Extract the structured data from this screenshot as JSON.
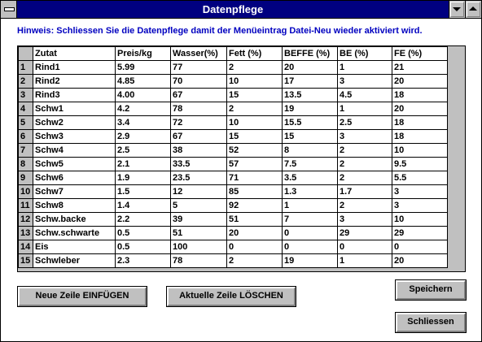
{
  "window": {
    "title": "Datenpflege"
  },
  "hint": "Hinweis: Schliessen Sie die Datenpflege damit der Menüeintrag Datei-Neu wieder aktiviert wird.",
  "grid": {
    "columns": [
      "Zutat",
      "Preis/kg",
      "Wasser(%)",
      "Fett (%)",
      "BEFFE (%)",
      "BE (%)",
      "FE (%)"
    ],
    "rows": [
      [
        "1",
        "Rind1",
        "5.99",
        "77",
        "2",
        "20",
        "1",
        "21"
      ],
      [
        "2",
        "Rind2",
        "4.85",
        "70",
        "10",
        "17",
        "3",
        "20"
      ],
      [
        "3",
        "Rind3",
        "4.00",
        "67",
        "15",
        "13.5",
        "4.5",
        "18"
      ],
      [
        "4",
        "Schw1",
        "4.2",
        "78",
        "2",
        "19",
        "1",
        "20"
      ],
      [
        "5",
        "Schw2",
        "3.4",
        "72",
        "10",
        "15.5",
        "2.5",
        "18"
      ],
      [
        "6",
        "Schw3",
        "2.9",
        "67",
        "15",
        "15",
        "3",
        "18"
      ],
      [
        "7",
        "Schw4",
        "2.5",
        "38",
        "52",
        "8",
        "2",
        "10"
      ],
      [
        "8",
        "Schw5",
        "2.1",
        "33.5",
        "57",
        "7.5",
        "2",
        "9.5"
      ],
      [
        "9",
        "Schw6",
        "1.9",
        "23.5",
        "71",
        "3.5",
        "2",
        "5.5"
      ],
      [
        "10",
        "Schw7",
        "1.5",
        "12",
        "85",
        "1.3",
        "1.7",
        "3"
      ],
      [
        "11",
        "Schw8",
        "1.4",
        "5",
        "92",
        "1",
        "2",
        "3"
      ],
      [
        "12",
        "Schw.backe",
        "2.2",
        "39",
        "51",
        "7",
        "3",
        "10"
      ],
      [
        "13",
        "Schw.schwarte",
        "0.5",
        "51",
        "20",
        "0",
        "29",
        "29"
      ],
      [
        "14",
        "Eis",
        "0.5",
        "100",
        "0",
        "0",
        "0",
        "0"
      ],
      [
        "15",
        "Schwleber",
        "2.3",
        "78",
        "2",
        "19",
        "1",
        "20"
      ]
    ]
  },
  "buttons": {
    "insert": "Neue Zeile EINFÜGEN",
    "delete": "Aktuelle Zeile LÖSCHEN",
    "save": "Speichern",
    "close": "Schliessen"
  },
  "icons": {
    "system_menu": "system-menu-icon",
    "minimize": "minimize-icon",
    "maximize": "maximize-icon"
  }
}
